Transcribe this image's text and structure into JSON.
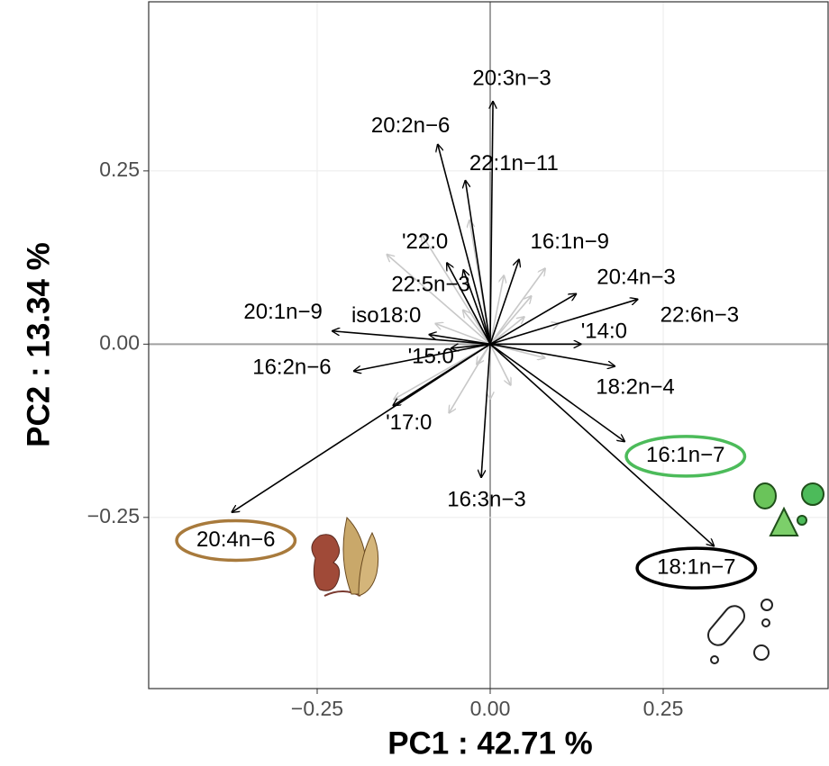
{
  "chart_data": {
    "type": "biplot",
    "xlabel": "PC1 :  42.71 %",
    "ylabel": "PC2 :  13.34 %",
    "xlim": [
      -0.4935,
      0.4883
    ],
    "ylim": [
      -0.497,
      0.494
    ],
    "xticks": [
      {
        "value": -0.25,
        "label": "−0.25"
      },
      {
        "value": 0,
        "label": "0.00"
      },
      {
        "value": 0.25,
        "label": "0.25"
      }
    ],
    "yticks": [
      {
        "value": -0.25,
        "label": "−0.25"
      },
      {
        "value": 0,
        "label": "0.00"
      },
      {
        "value": 0.25,
        "label": "0.25"
      }
    ],
    "grid": true,
    "loadings": {
      "color": "#000000",
      "labels": [
        "20:3n−3",
        "20:2n−6",
        "22:1n−11",
        "'22:0",
        "22:5n−3",
        "16:1n−9",
        "20:4n−3",
        "22:6n−3",
        "20:1n−9",
        "iso18:0",
        "'14:0",
        "16:2n−6",
        "'15:0",
        "18:2n−4",
        "'17:0",
        "16:3n−3",
        "16:1n−7",
        "18:1n−7",
        "20:4n−6"
      ],
      "x": [
        0.004,
        -0.076,
        -0.036,
        -0.063,
        -0.039,
        0.042,
        0.125,
        0.214,
        -0.229,
        -0.089,
        0.132,
        -0.198,
        -0.057,
        0.181,
        -0.141,
        -0.013,
        0.195,
        0.324,
        -0.374
      ],
      "y": [
        0.351,
        0.289,
        0.237,
        0.118,
        0.108,
        0.123,
        0.073,
        0.065,
        0.019,
        0.014,
        0,
        -0.039,
        -0.006,
        -0.032,
        -0.089,
        -0.193,
        -0.141,
        -0.292,
        -0.243
      ]
    },
    "other_loadings": {
      "color": "#c8c8c8",
      "x": [
        -0.15,
        -0.1,
        -0.03,
        0.02,
        0.08,
        0.06,
        0.1,
        -0.14,
        -0.06,
        0.0,
        0.03,
        -0.04,
        0.05,
        -0.08,
        0.08,
        -0.02
      ],
      "y": [
        0.13,
        0.16,
        0.18,
        0.1,
        0.11,
        0.07,
        0.03,
        -0.08,
        -0.1,
        -0.08,
        -0.06,
        0.05,
        0.04,
        0.03,
        -0.02,
        -0.03
      ]
    },
    "highlights": [
      {
        "index": 18,
        "color": "#a87a3c"
      },
      {
        "index": 16,
        "color": "#4cbb5a"
      },
      {
        "index": 17,
        "color": "#000000"
      }
    ]
  }
}
